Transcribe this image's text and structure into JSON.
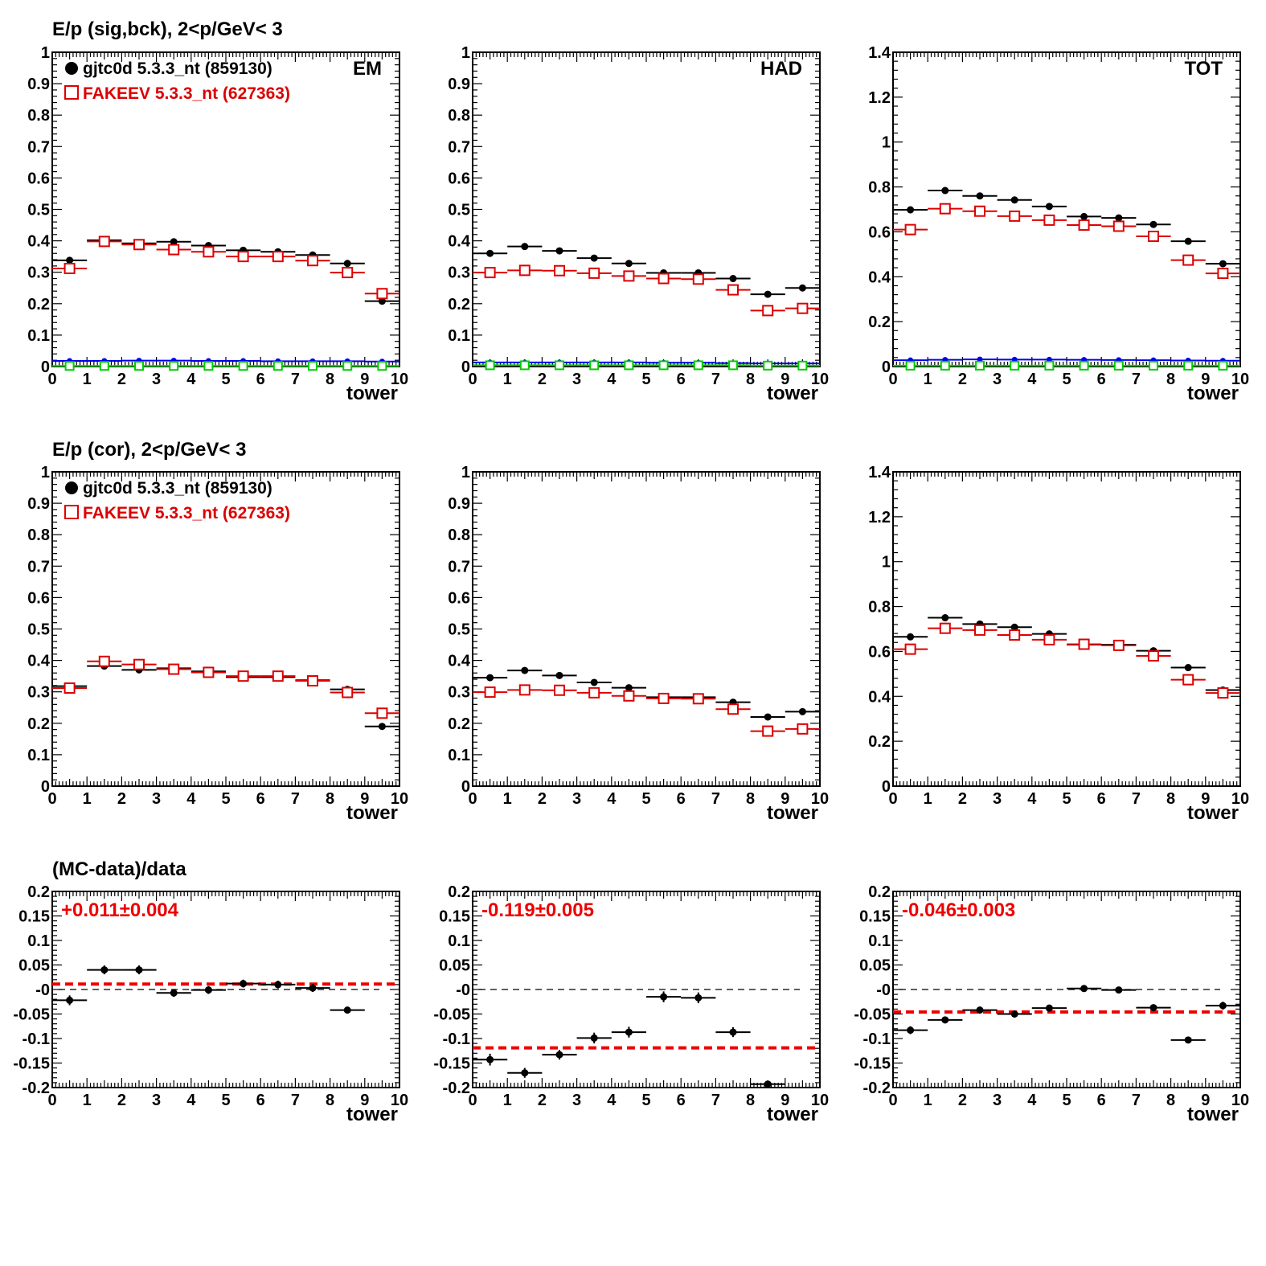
{
  "figure": {
    "row_titles": [
      "E/p (sig,bck),  2<p/GeV< 3",
      "E/p (cor),  2<p/GeV< 3",
      "(MC-data)/data"
    ],
    "legend": [
      {
        "label": "gjtc0d 5.3.3_nt (859130)",
        "color": "#000000",
        "marker": "filled-circle"
      },
      {
        "label": "FAKEEV 5.3.3_nt (627363)",
        "color": "#dd0000",
        "marker": "open-square"
      }
    ],
    "colors": {
      "data": "#000000",
      "mc": "#dd0000",
      "sig": "#0000ee",
      "bck": "#00cc00",
      "fit": "#ee0000"
    }
  },
  "chart_data": [
    {
      "type": "scatter",
      "panel": "row1-em",
      "corner_label": "EM",
      "xlabel": "tower",
      "xlim": [
        0,
        10
      ],
      "ylim": [
        0,
        1
      ],
      "xticks": [
        "0",
        "1",
        "2",
        "3",
        "4",
        "5",
        "6",
        "7",
        "8",
        "9",
        "10"
      ],
      "yticks": [
        "0",
        "0.1",
        "0.2",
        "0.3",
        "0.4",
        "0.5",
        "0.6",
        "0.7",
        "0.8",
        "0.9",
        "1"
      ],
      "x": [
        0.5,
        1.5,
        2.5,
        3.5,
        4.5,
        5.5,
        6.5,
        7.5,
        8.5,
        9.5
      ],
      "series": [
        {
          "name": "gjtc0d 5.3.3_nt (859130)",
          "values": [
            0.338,
            0.402,
            0.392,
            0.397,
            0.385,
            0.37,
            0.365,
            0.355,
            0.328,
            0.208
          ]
        },
        {
          "name": "FAKEEV 5.3.3_nt (627363)",
          "values": [
            0.312,
            0.398,
            0.388,
            0.372,
            0.365,
            0.35,
            0.35,
            0.337,
            0.299,
            0.232
          ]
        },
        {
          "values": [
            0.018,
            0.018,
            0.019,
            0.019,
            0.018,
            0.018,
            0.017,
            0.017,
            0.017,
            0.016
          ]
        },
        {
          "values": [
            0.002,
            0.002,
            0.002,
            0.002,
            0.002,
            0.002,
            0.002,
            0.002,
            0.002,
            0.002
          ]
        }
      ]
    },
    {
      "type": "scatter",
      "panel": "row1-had",
      "corner_label": "HAD",
      "xlabel": "tower",
      "xlim": [
        0,
        10
      ],
      "ylim": [
        0,
        1
      ],
      "xticks": [
        "0",
        "1",
        "2",
        "3",
        "4",
        "5",
        "6",
        "7",
        "8",
        "9",
        "10"
      ],
      "yticks": [
        "0",
        "0.1",
        "0.2",
        "0.3",
        "0.4",
        "0.5",
        "0.6",
        "0.7",
        "0.8",
        "0.9",
        "1"
      ],
      "x": [
        0.5,
        1.5,
        2.5,
        3.5,
        4.5,
        5.5,
        6.5,
        7.5,
        8.5,
        9.5
      ],
      "series": [
        {
          "name": "gjtc0d 5.3.3_nt (859130)",
          "values": [
            0.36,
            0.382,
            0.368,
            0.345,
            0.328,
            0.298,
            0.298,
            0.28,
            0.23,
            0.25
          ]
        },
        {
          "name": "FAKEEV 5.3.3_nt (627363)",
          "values": [
            0.299,
            0.306,
            0.305,
            0.297,
            0.288,
            0.28,
            0.278,
            0.244,
            0.178,
            0.185
          ]
        },
        {
          "values": [
            0.013,
            0.013,
            0.013,
            0.013,
            0.013,
            0.012,
            0.012,
            0.011,
            0.01,
            0.01
          ]
        },
        {
          "values": [
            0.004,
            0.004,
            0.004,
            0.004,
            0.004,
            0.004,
            0.004,
            0.004,
            0.003,
            0.003
          ]
        }
      ]
    },
    {
      "type": "scatter",
      "panel": "row1-tot",
      "corner_label": "TOT",
      "xlabel": "tower",
      "xlim": [
        0,
        10
      ],
      "ylim": [
        0,
        1.4
      ],
      "xticks": [
        "0",
        "1",
        "2",
        "3",
        "4",
        "5",
        "6",
        "7",
        "8",
        "9",
        "10"
      ],
      "yticks": [
        "0",
        "0.2",
        "0.4",
        "0.6",
        "0.8",
        "1",
        "1.2",
        "1.4"
      ],
      "x": [
        0.5,
        1.5,
        2.5,
        3.5,
        4.5,
        5.5,
        6.5,
        7.5,
        8.5,
        9.5
      ],
      "series": [
        {
          "name": "gjtc0d 5.3.3_nt (859130)",
          "values": [
            0.698,
            0.784,
            0.76,
            0.742,
            0.713,
            0.668,
            0.662,
            0.633,
            0.558,
            0.458
          ]
        },
        {
          "name": "FAKEEV 5.3.3_nt (627363)",
          "values": [
            0.61,
            0.703,
            0.692,
            0.67,
            0.652,
            0.63,
            0.625,
            0.58,
            0.474,
            0.415
          ]
        },
        {
          "values": [
            0.028,
            0.03,
            0.032,
            0.031,
            0.031,
            0.03,
            0.029,
            0.028,
            0.027,
            0.026
          ]
        },
        {
          "values": [
            0.004,
            0.004,
            0.004,
            0.004,
            0.004,
            0.004,
            0.004,
            0.004,
            0.004,
            0.004
          ]
        }
      ]
    },
    {
      "type": "scatter",
      "panel": "row2-em",
      "xlabel": "tower",
      "xlim": [
        0,
        10
      ],
      "ylim": [
        0,
        1
      ],
      "xticks": [
        "0",
        "1",
        "2",
        "3",
        "4",
        "5",
        "6",
        "7",
        "8",
        "9",
        "10"
      ],
      "yticks": [
        "0",
        "0.1",
        "0.2",
        "0.3",
        "0.4",
        "0.5",
        "0.6",
        "0.7",
        "0.8",
        "0.9",
        "1"
      ],
      "x": [
        0.5,
        1.5,
        2.5,
        3.5,
        4.5,
        5.5,
        6.5,
        7.5,
        8.5,
        9.5
      ],
      "series": [
        {
          "name": "gjtc0d 5.3.3_nt (859130)",
          "values": [
            0.318,
            0.382,
            0.37,
            0.375,
            0.365,
            0.347,
            0.347,
            0.337,
            0.308,
            0.19
          ]
        },
        {
          "name": "FAKEEV 5.3.3_nt (627363)",
          "values": [
            0.312,
            0.397,
            0.387,
            0.372,
            0.362,
            0.35,
            0.35,
            0.335,
            0.298,
            0.232
          ]
        }
      ]
    },
    {
      "type": "scatter",
      "panel": "row2-had",
      "xlabel": "tower",
      "xlim": [
        0,
        10
      ],
      "ylim": [
        0,
        1
      ],
      "xticks": [
        "0",
        "1",
        "2",
        "3",
        "4",
        "5",
        "6",
        "7",
        "8",
        "9",
        "10"
      ],
      "yticks": [
        "0",
        "0.1",
        "0.2",
        "0.3",
        "0.4",
        "0.5",
        "0.6",
        "0.7",
        "0.8",
        "0.9",
        "1"
      ],
      "x": [
        0.5,
        1.5,
        2.5,
        3.5,
        4.5,
        5.5,
        6.5,
        7.5,
        8.5,
        9.5
      ],
      "series": [
        {
          "name": "gjtc0d 5.3.3_nt (859130)",
          "values": [
            0.345,
            0.368,
            0.352,
            0.33,
            0.313,
            0.283,
            0.283,
            0.267,
            0.22,
            0.237
          ]
        },
        {
          "name": "FAKEEV 5.3.3_nt (627363)",
          "values": [
            0.299,
            0.306,
            0.305,
            0.297,
            0.287,
            0.279,
            0.278,
            0.245,
            0.175,
            0.182
          ]
        }
      ]
    },
    {
      "type": "scatter",
      "panel": "row2-tot",
      "xlabel": "tower",
      "xlim": [
        0,
        10
      ],
      "ylim": [
        0,
        1.4
      ],
      "xticks": [
        "0",
        "1",
        "2",
        "3",
        "4",
        "5",
        "6",
        "7",
        "8",
        "9",
        "10"
      ],
      "yticks": [
        "0",
        "0.2",
        "0.4",
        "0.6",
        "0.8",
        "1",
        "1.2",
        "1.4"
      ],
      "x": [
        0.5,
        1.5,
        2.5,
        3.5,
        4.5,
        5.5,
        6.5,
        7.5,
        8.5,
        9.5
      ],
      "series": [
        {
          "name": "gjtc0d 5.3.3_nt (859130)",
          "values": [
            0.665,
            0.75,
            0.722,
            0.708,
            0.678,
            0.63,
            0.63,
            0.603,
            0.528,
            0.428
          ]
        },
        {
          "name": "FAKEEV 5.3.3_nt (627363)",
          "values": [
            0.61,
            0.703,
            0.695,
            0.673,
            0.652,
            0.632,
            0.627,
            0.58,
            0.474,
            0.415
          ]
        }
      ]
    },
    {
      "type": "scatter",
      "panel": "row3-em",
      "xlabel": "tower",
      "xlim": [
        0,
        10
      ],
      "ylim": [
        -0.2,
        0.2
      ],
      "xticks": [
        "0",
        "1",
        "2",
        "3",
        "4",
        "5",
        "6",
        "7",
        "8",
        "9",
        "10"
      ],
      "yticks": [
        "-0.2",
        "-0.15",
        "-0.1",
        "-0.05",
        "-0",
        "0.05",
        "0.1",
        "0.15",
        "0.2"
      ],
      "x": [
        0.5,
        1.5,
        2.5,
        3.5,
        4.5,
        5.5,
        6.5,
        7.5,
        8.5
      ],
      "values": [
        -0.022,
        0.04,
        0.04,
        -0.007,
        -0.001,
        0.012,
        0.01,
        0.003,
        -0.042
      ],
      "errors": [
        0.01,
        0.009,
        0.009,
        0.008,
        0.008,
        0.008,
        0.008,
        0.008,
        0.006
      ],
      "fit": {
        "text": "+0.011±0.004",
        "value": 0.011
      }
    },
    {
      "type": "scatter",
      "panel": "row3-had",
      "xlabel": "tower",
      "xlim": [
        0,
        10
      ],
      "ylim": [
        -0.2,
        0.2
      ],
      "xticks": [
        "0",
        "1",
        "2",
        "3",
        "4",
        "5",
        "6",
        "7",
        "8",
        "9",
        "10"
      ],
      "yticks": [
        "-0.2",
        "-0.15",
        "-0.1",
        "-0.05",
        "-0",
        "0.05",
        "0.1",
        "0.15",
        "0.2"
      ],
      "x": [
        0.5,
        1.5,
        2.5,
        3.5,
        4.5,
        5.5,
        6.5,
        7.5,
        8.5
      ],
      "values": [
        -0.143,
        -0.17,
        -0.133,
        -0.099,
        -0.087,
        -0.015,
        -0.017,
        -0.087,
        -0.193
      ],
      "errors": [
        0.012,
        0.01,
        0.01,
        0.011,
        0.011,
        0.011,
        0.011,
        0.01,
        0.006
      ],
      "fit": {
        "text": "-0.119±0.005",
        "value": -0.119
      }
    },
    {
      "type": "scatter",
      "panel": "row3-tot",
      "xlabel": "tower",
      "xlim": [
        0,
        10
      ],
      "ylim": [
        -0.2,
        0.2
      ],
      "xticks": [
        "0",
        "1",
        "2",
        "3",
        "4",
        "5",
        "6",
        "7",
        "8",
        "9",
        "10"
      ],
      "yticks": [
        "-0.2",
        "-0.15",
        "-0.1",
        "-0.05",
        "-0",
        "0.05",
        "0.1",
        "0.15",
        "0.2"
      ],
      "x": [
        0.5,
        1.5,
        2.5,
        3.5,
        4.5,
        5.5,
        6.5,
        7.5,
        8.5,
        9.5
      ],
      "values": [
        -0.083,
        -0.062,
        -0.042,
        -0.05,
        -0.038,
        0.002,
        -0.001,
        -0.037,
        -0.103,
        -0.033
      ],
      "errors": [
        0.008,
        0.007,
        0.007,
        0.007,
        0.007,
        0.007,
        0.006,
        0.005,
        0.004,
        0.008
      ],
      "fit": {
        "text": "-0.046±0.003",
        "value": -0.046
      }
    }
  ]
}
